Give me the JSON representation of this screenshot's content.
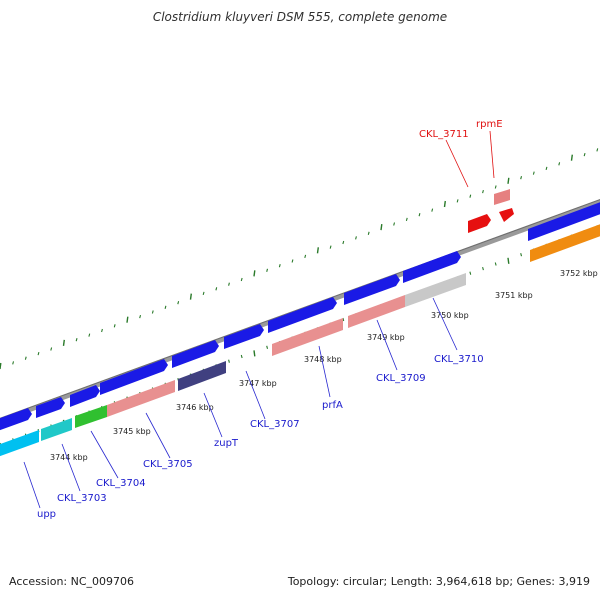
{
  "title": "Clostridium kluyveri DSM 555, complete genome",
  "footer": {
    "accession": "Accession: NC_009706",
    "summary": "Topology: circular; Length: 3,964,618 bp; Genes: 3,919"
  },
  "colors": {
    "backbone": "#888888",
    "cds_blue": "#1a1ae6",
    "tick_green": "#2a7a2a",
    "label_blue": "#1a1acc",
    "label_red": "#e01010"
  },
  "scale": {
    "labels": [
      "3744 kbp",
      "3745 kbp",
      "3746 kbp",
      "3747 kbp",
      "3748 kbp",
      "3749 kbp",
      "3750 kbp",
      "3751 kbp",
      "3752 kbp"
    ]
  },
  "genes": [
    {
      "name": "upp",
      "color": "#1a1ae6"
    },
    {
      "name": "CKL_3703",
      "color": "#1a1ae6"
    },
    {
      "name": "CKL_3704",
      "color": "#1a1ae6"
    },
    {
      "name": "CKL_3705",
      "color": "#1a1ae6"
    },
    {
      "name": "zupT",
      "color": "#1a1ae6"
    },
    {
      "name": "CKL_3707",
      "color": "#1a1ae6"
    },
    {
      "name": "prfA",
      "color": "#1a1ae6"
    },
    {
      "name": "CKL_3709",
      "color": "#1a1ae6"
    },
    {
      "name": "CKL_3710",
      "color": "#1a1ae6"
    },
    {
      "name": "CKL_3711",
      "color": "#e01010"
    },
    {
      "name": "rpmE",
      "color": "#e01010"
    }
  ]
}
